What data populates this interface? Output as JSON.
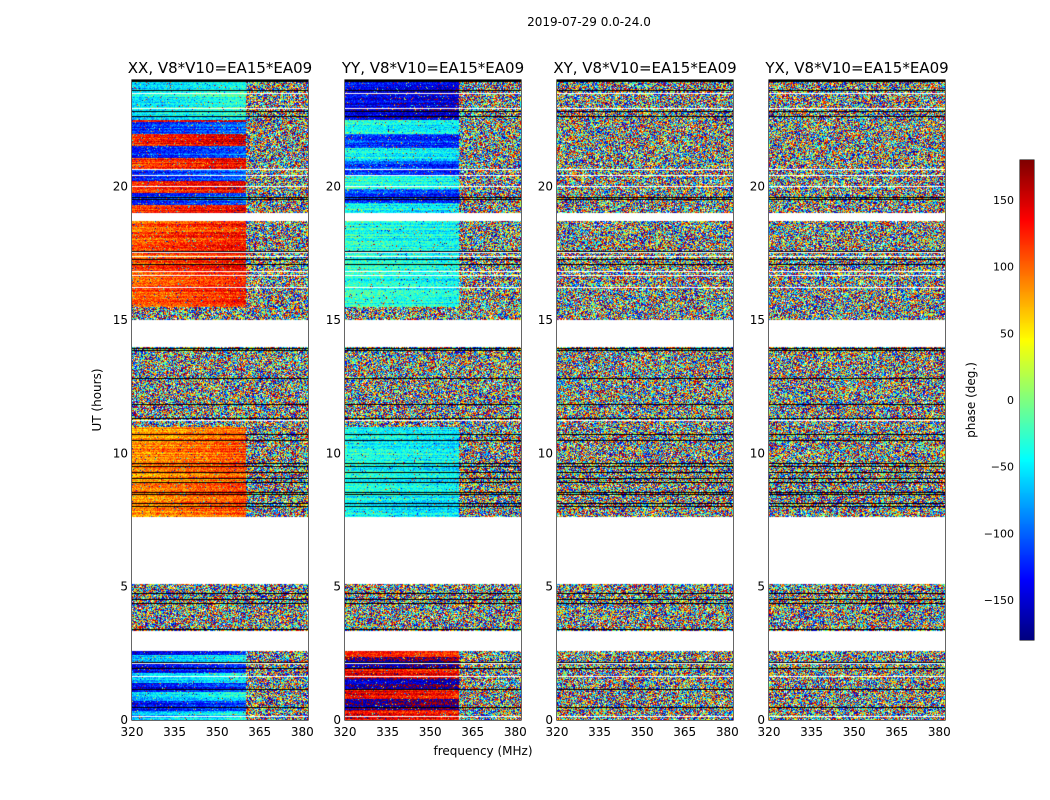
{
  "figure": {
    "suptitle": "2019-07-29 0.0-24.0",
    "xlabel": "frequency (MHz)",
    "ylabel": "UT (hours)"
  },
  "chart_data": {
    "type": "heatmap",
    "x_range": [
      320,
      382
    ],
    "y_range": [
      0,
      24
    ],
    "x_ticks": [
      320,
      335,
      350,
      365,
      380
    ],
    "y_ticks": [
      0,
      5,
      10,
      15,
      20
    ],
    "panels": [
      {
        "id": "xx",
        "title": "XX, V8*V10=EA15*EA09",
        "kind": "coherent_xx"
      },
      {
        "id": "yy",
        "title": "YY, V8*V10=EA15*EA09",
        "kind": "coherent_yy"
      },
      {
        "id": "xy",
        "title": "XY, V8*V10=EA15*EA09",
        "kind": "noise"
      },
      {
        "id": "yx",
        "title": "YX, V8*V10=EA15*EA09",
        "kind": "noise"
      }
    ],
    "flagged_ut_ranges": [
      [
        2.6,
        3.35
      ],
      [
        5.1,
        7.6
      ],
      [
        14.0,
        15.0
      ],
      [
        18.7,
        19.0
      ]
    ],
    "rfi_edge_mhz": 360,
    "colorbar": {
      "label": "phase (deg.)",
      "range": [
        -180,
        180
      ],
      "ticks": [
        -150,
        -100,
        -50,
        0,
        50,
        100,
        150
      ],
      "colormap": "jet"
    }
  }
}
